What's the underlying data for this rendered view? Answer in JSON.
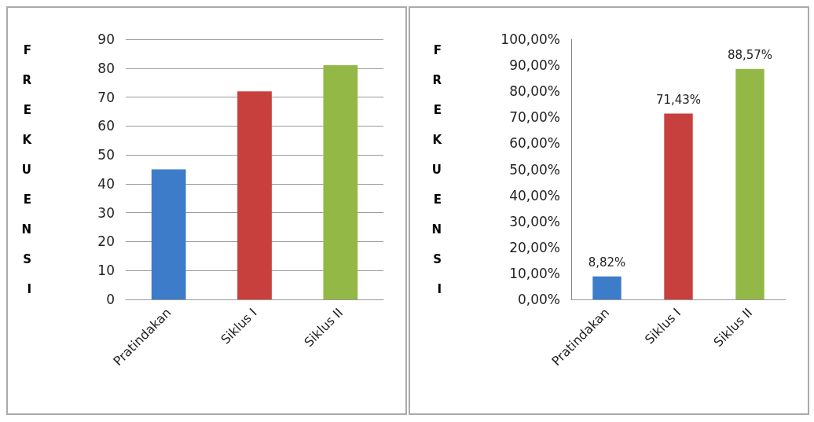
{
  "chart_data": [
    {
      "type": "bar",
      "ylabel": "FREKUENSI",
      "categories": [
        "Pratindakan",
        "Siklus I",
        "Siklus II"
      ],
      "values": [
        45,
        72,
        81
      ],
      "colors": [
        "#3d7cc9",
        "#c8403d",
        "#93b845"
      ],
      "ylim": [
        0,
        90
      ],
      "yticks": [
        0,
        10,
        20,
        30,
        40,
        50,
        60,
        70,
        80,
        90
      ],
      "grid": "y"
    },
    {
      "type": "bar",
      "ylabel": "FREKUENSI",
      "categories": [
        "Pratindakan",
        "Siklus I",
        "Siklus II"
      ],
      "values": [
        8.82,
        71.43,
        88.57
      ],
      "colors": [
        "#3d7cc9",
        "#c8403d",
        "#93b845"
      ],
      "value_labels": [
        "8,82%",
        "71,43%",
        "88,57%"
      ],
      "ylim": [
        0,
        100
      ],
      "yticks": [
        {
          "value": 0,
          "label": "0,00%"
        },
        {
          "value": 10,
          "label": "10,00%"
        },
        {
          "value": 20,
          "label": "20,00%"
        },
        {
          "value": 30,
          "label": "30,00%"
        },
        {
          "value": 40,
          "label": "40,00%"
        },
        {
          "value": 50,
          "label": "50,00%"
        },
        {
          "value": 60,
          "label": "60,00%"
        },
        {
          "value": 70,
          "label": "70,00%"
        },
        {
          "value": 80,
          "label": "80,00%"
        },
        {
          "value": 90,
          "label": "90,00%"
        },
        {
          "value": 100,
          "label": "100,00%"
        }
      ],
      "grid": false
    }
  ]
}
